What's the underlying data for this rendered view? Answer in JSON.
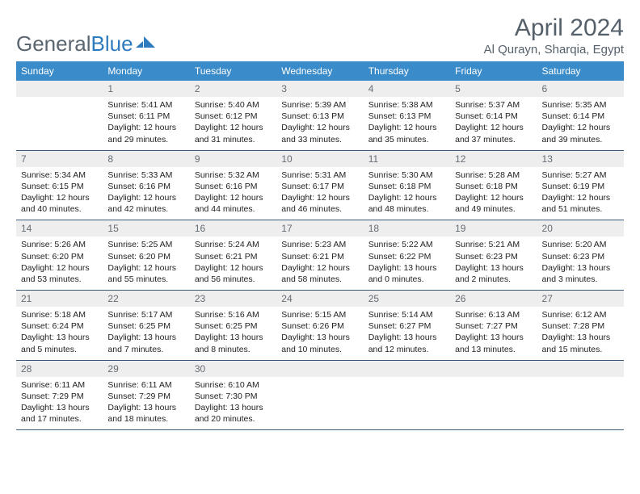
{
  "logo": {
    "part1": "General",
    "part2": "Blue"
  },
  "header": {
    "title": "April 2024",
    "location": "Al Qurayn, Sharqia, Egypt"
  },
  "colors": {
    "header_bg": "#3a8bc9",
    "header_text": "#ffffff",
    "daynum_bg": "#eeeeee",
    "daynum_text": "#666d74",
    "row_border": "#3a5a7a",
    "title_color": "#55606a",
    "logo_gray": "#5a6570",
    "logo_blue": "#2f7bbf",
    "body_text": "#222222"
  },
  "dayHeaders": [
    "Sunday",
    "Monday",
    "Tuesday",
    "Wednesday",
    "Thursday",
    "Friday",
    "Saturday"
  ],
  "weeks": [
    [
      {
        "blank": true
      },
      {
        "num": "1",
        "sunrise": "5:41 AM",
        "sunset": "6:11 PM",
        "daylight": "12 hours and 29 minutes."
      },
      {
        "num": "2",
        "sunrise": "5:40 AM",
        "sunset": "6:12 PM",
        "daylight": "12 hours and 31 minutes."
      },
      {
        "num": "3",
        "sunrise": "5:39 AM",
        "sunset": "6:13 PM",
        "daylight": "12 hours and 33 minutes."
      },
      {
        "num": "4",
        "sunrise": "5:38 AM",
        "sunset": "6:13 PM",
        "daylight": "12 hours and 35 minutes."
      },
      {
        "num": "5",
        "sunrise": "5:37 AM",
        "sunset": "6:14 PM",
        "daylight": "12 hours and 37 minutes."
      },
      {
        "num": "6",
        "sunrise": "5:35 AM",
        "sunset": "6:14 PM",
        "daylight": "12 hours and 39 minutes."
      }
    ],
    [
      {
        "num": "7",
        "sunrise": "5:34 AM",
        "sunset": "6:15 PM",
        "daylight": "12 hours and 40 minutes."
      },
      {
        "num": "8",
        "sunrise": "5:33 AM",
        "sunset": "6:16 PM",
        "daylight": "12 hours and 42 minutes."
      },
      {
        "num": "9",
        "sunrise": "5:32 AM",
        "sunset": "6:16 PM",
        "daylight": "12 hours and 44 minutes."
      },
      {
        "num": "10",
        "sunrise": "5:31 AM",
        "sunset": "6:17 PM",
        "daylight": "12 hours and 46 minutes."
      },
      {
        "num": "11",
        "sunrise": "5:30 AM",
        "sunset": "6:18 PM",
        "daylight": "12 hours and 48 minutes."
      },
      {
        "num": "12",
        "sunrise": "5:28 AM",
        "sunset": "6:18 PM",
        "daylight": "12 hours and 49 minutes."
      },
      {
        "num": "13",
        "sunrise": "5:27 AM",
        "sunset": "6:19 PM",
        "daylight": "12 hours and 51 minutes."
      }
    ],
    [
      {
        "num": "14",
        "sunrise": "5:26 AM",
        "sunset": "6:20 PM",
        "daylight": "12 hours and 53 minutes."
      },
      {
        "num": "15",
        "sunrise": "5:25 AM",
        "sunset": "6:20 PM",
        "daylight": "12 hours and 55 minutes."
      },
      {
        "num": "16",
        "sunrise": "5:24 AM",
        "sunset": "6:21 PM",
        "daylight": "12 hours and 56 minutes."
      },
      {
        "num": "17",
        "sunrise": "5:23 AM",
        "sunset": "6:21 PM",
        "daylight": "12 hours and 58 minutes."
      },
      {
        "num": "18",
        "sunrise": "5:22 AM",
        "sunset": "6:22 PM",
        "daylight": "13 hours and 0 minutes."
      },
      {
        "num": "19",
        "sunrise": "5:21 AM",
        "sunset": "6:23 PM",
        "daylight": "13 hours and 2 minutes."
      },
      {
        "num": "20",
        "sunrise": "5:20 AM",
        "sunset": "6:23 PM",
        "daylight": "13 hours and 3 minutes."
      }
    ],
    [
      {
        "num": "21",
        "sunrise": "5:18 AM",
        "sunset": "6:24 PM",
        "daylight": "13 hours and 5 minutes."
      },
      {
        "num": "22",
        "sunrise": "5:17 AM",
        "sunset": "6:25 PM",
        "daylight": "13 hours and 7 minutes."
      },
      {
        "num": "23",
        "sunrise": "5:16 AM",
        "sunset": "6:25 PM",
        "daylight": "13 hours and 8 minutes."
      },
      {
        "num": "24",
        "sunrise": "5:15 AM",
        "sunset": "6:26 PM",
        "daylight": "13 hours and 10 minutes."
      },
      {
        "num": "25",
        "sunrise": "5:14 AM",
        "sunset": "6:27 PM",
        "daylight": "13 hours and 12 minutes."
      },
      {
        "num": "26",
        "sunrise": "6:13 AM",
        "sunset": "7:27 PM",
        "daylight": "13 hours and 13 minutes."
      },
      {
        "num": "27",
        "sunrise": "6:12 AM",
        "sunset": "7:28 PM",
        "daylight": "13 hours and 15 minutes."
      }
    ],
    [
      {
        "num": "28",
        "sunrise": "6:11 AM",
        "sunset": "7:29 PM",
        "daylight": "13 hours and 17 minutes."
      },
      {
        "num": "29",
        "sunrise": "6:11 AM",
        "sunset": "7:29 PM",
        "daylight": "13 hours and 18 minutes."
      },
      {
        "num": "30",
        "sunrise": "6:10 AM",
        "sunset": "7:30 PM",
        "daylight": "13 hours and 20 minutes."
      },
      {
        "blank": true
      },
      {
        "blank": true
      },
      {
        "blank": true
      },
      {
        "blank": true
      }
    ]
  ],
  "labels": {
    "sunrise": "Sunrise:",
    "sunset": "Sunset:",
    "daylight": "Daylight:"
  }
}
